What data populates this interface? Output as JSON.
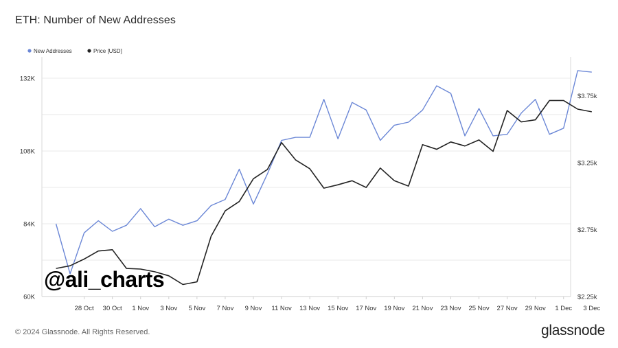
{
  "title": "ETH: Number of New Addresses",
  "footer": "© 2024 Glassnode. All Rights Reserved.",
  "brand": "glassnode",
  "watermark": "@ali_charts",
  "colors": {
    "new_addresses": "#6b87d6",
    "price": "#222222",
    "grid": "#e9e9e9"
  },
  "chart_data": {
    "type": "line",
    "title": "ETH: Number of New Addresses",
    "legend": {
      "placement": "top-left",
      "entries": [
        "New Addresses",
        "Price [USD]"
      ]
    },
    "grid": true,
    "x_tick_labels": [
      "28 Oct",
      "30 Oct",
      "1 Nov",
      "3 Nov",
      "5 Nov",
      "7 Nov",
      "9 Nov",
      "11 Nov",
      "13 Nov",
      "15 Nov",
      "17 Nov",
      "19 Nov",
      "21 Nov",
      "23 Nov",
      "25 Nov",
      "27 Nov",
      "29 Nov",
      "1 Dec",
      "3 Dec"
    ],
    "x_day_start": -1,
    "x_day_end": 36.5,
    "y_left": {
      "ticks": [
        "60K",
        "84K",
        "108K",
        "132K"
      ],
      "tick_values": [
        60000,
        84000,
        108000,
        132000
      ],
      "ylim": [
        60000,
        139000
      ]
    },
    "y_right": {
      "ticks": [
        "$2.25k",
        "$2.75k",
        "$3.25k",
        "$3.75k"
      ],
      "tick_values": [
        2250,
        2750,
        3250,
        3750
      ],
      "ylim": [
        2250,
        4040
      ]
    },
    "series": [
      {
        "name": "New Addresses",
        "axis": "left",
        "values": [
          84000,
          67500,
          81000,
          85000,
          81500,
          83500,
          89000,
          83000,
          85500,
          83500,
          85000,
          90000,
          92000,
          102000,
          90500,
          100500,
          111500,
          112500,
          112500,
          125000,
          112000,
          124000,
          121500,
          111500,
          116500,
          117500,
          121500,
          129500,
          127000,
          113000,
          122000,
          113000,
          113500,
          120500,
          125000,
          113500,
          115500,
          134500,
          134000
        ]
      },
      {
        "name": "Price [USD]",
        "axis": "right",
        "values": [
          2460,
          2480,
          2530,
          2590,
          2600,
          2460,
          2455,
          2435,
          2405,
          2340,
          2360,
          2700,
          2890,
          2960,
          3130,
          3200,
          3400,
          3270,
          3205,
          3060,
          3085,
          3115,
          3065,
          3210,
          3115,
          3075,
          3385,
          3350,
          3405,
          3375,
          3420,
          3335,
          3640,
          3555,
          3570,
          3715,
          3715,
          3650,
          3630
        ]
      }
    ]
  }
}
